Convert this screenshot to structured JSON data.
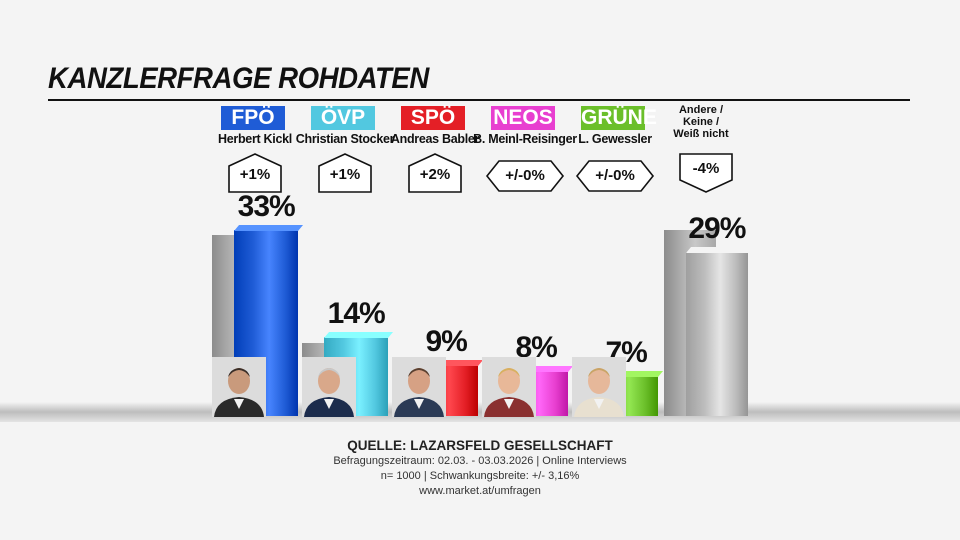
{
  "title": "KANZLERFRAGE ROHDATEN",
  "chart_data": {
    "type": "bar",
    "title": "KANZLERFRAGE ROHDATEN",
    "ylim": [
      0,
      40
    ],
    "categories": [
      "FPÖ",
      "ÖVP",
      "SPÖ",
      "NEOS",
      "GRÜNE",
      "Andere / Keine / Weiß nicht"
    ],
    "series": [
      {
        "values": [
          33,
          14,
          9,
          8,
          7,
          29
        ]
      },
      {
        "values": [
          32,
          13,
          7,
          8,
          7,
          33
        ]
      }
    ],
    "bars": [
      {
        "party": "FPÖ",
        "candidate": "Herbert Kickl",
        "value": 33,
        "value_label": "33%",
        "previous": 32,
        "change": "+1%",
        "direction": "up",
        "color": "#1f5cd6",
        "photo": true
      },
      {
        "party": "ÖVP",
        "candidate": "Christian Stocker",
        "value": 14,
        "value_label": "14%",
        "previous": 13,
        "change": "+1%",
        "direction": "up",
        "color": "#52c8e0",
        "photo": true
      },
      {
        "party": "SPÖ",
        "candidate": "Andreas Babler",
        "value": 9,
        "value_label": "9%",
        "previous": 7,
        "change": "+2%",
        "direction": "up",
        "color": "#e41f26",
        "photo": true
      },
      {
        "party": "NEOS",
        "candidate": "B. Meinl-Reisinger",
        "value": 8,
        "value_label": "8%",
        "previous": 8,
        "change": "+/-0%",
        "direction": "flat",
        "color": "#e83fd0",
        "photo": true
      },
      {
        "party": "GRÜNE",
        "candidate": "L. Gewessler",
        "value": 7,
        "value_label": "7%",
        "previous": 7,
        "change": "+/-0%",
        "direction": "flat",
        "color": "#6bbf2a",
        "photo": true
      },
      {
        "party": "",
        "candidate": "",
        "label": "Andere /\nKeine /\nWeiß nicht",
        "value": 29,
        "value_label": "29%",
        "previous": 33,
        "change": "-4%",
        "direction": "down",
        "color": "#bdbdbd",
        "photo": false
      }
    ]
  },
  "footer": {
    "source": "QUELLE: LAZARSFELD GESELLSCHAFT",
    "period": "Befragungszeitraum: 02.03. - 03.03.2026 | Online Interviews",
    "sample": "n= 1000 | Schwankungsbreite: +/- 3,16%",
    "url": "www.market.at/umfragen"
  },
  "colors": {
    "background": "#f4f4f4",
    "text": "#111111",
    "previous_bar": "#b0b0b0",
    "badge_text": "#ffffff"
  }
}
